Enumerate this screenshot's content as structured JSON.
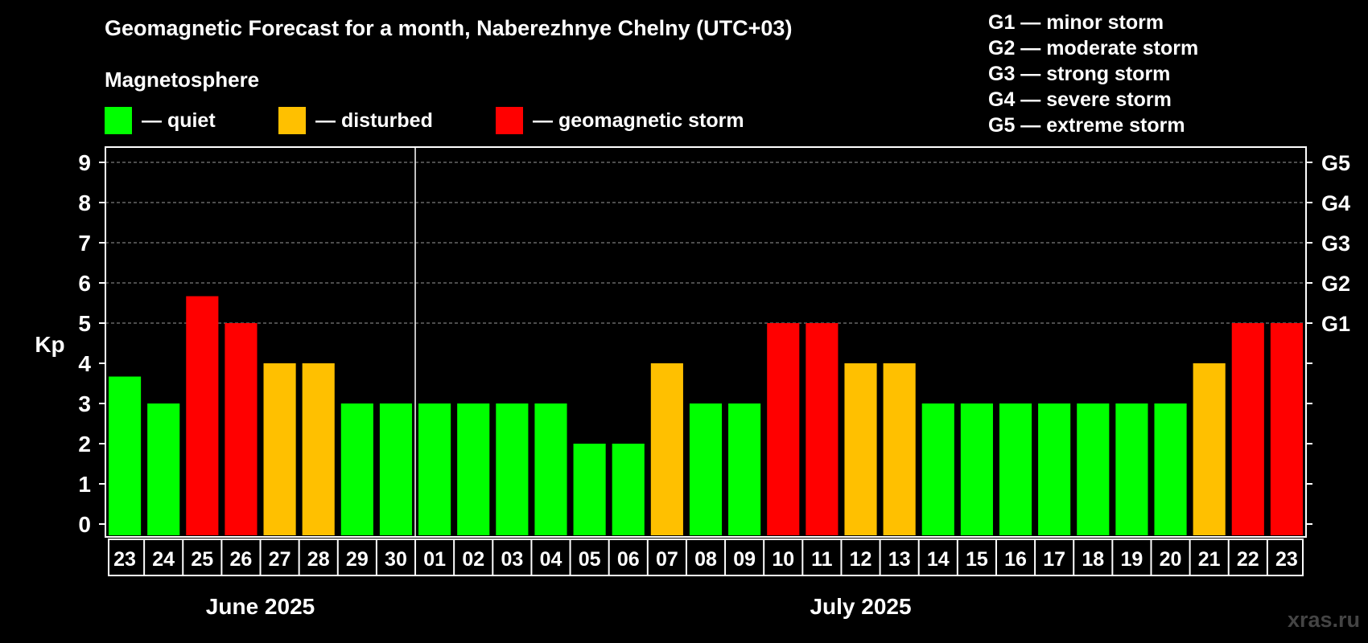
{
  "chart_data": {
    "type": "bar",
    "title": "Geomagnetic Forecast for a month, Naberezhnye Chelny (UTC+03)",
    "ylabel": "Kp",
    "ylim": [
      0,
      9
    ],
    "yticks": [
      "0",
      "1",
      "2",
      "3",
      "4",
      "5",
      "6",
      "7",
      "8",
      "9"
    ],
    "right_axis": [
      {
        "label": "G1",
        "kp": 5
      },
      {
        "label": "G2",
        "kp": 6
      },
      {
        "label": "G3",
        "kp": 7
      },
      {
        "label": "G4",
        "kp": 8
      },
      {
        "label": "G5",
        "kp": 9
      }
    ],
    "grid": true,
    "categories": [
      "23",
      "24",
      "25",
      "26",
      "27",
      "28",
      "29",
      "30",
      "01",
      "02",
      "03",
      "04",
      "05",
      "06",
      "07",
      "08",
      "09",
      "10",
      "11",
      "12",
      "13",
      "14",
      "15",
      "16",
      "17",
      "18",
      "19",
      "20",
      "21",
      "22",
      "23"
    ],
    "values": [
      3.67,
      3,
      5.67,
      5,
      4,
      4,
      3,
      3,
      3,
      3,
      3,
      3,
      2,
      2,
      4,
      3,
      3,
      5,
      5,
      4,
      4,
      3,
      3,
      3,
      3,
      3,
      3,
      3,
      4,
      5,
      5
    ],
    "status": [
      "quiet",
      "quiet",
      "storm",
      "storm",
      "disturbed",
      "disturbed",
      "quiet",
      "quiet",
      "quiet",
      "quiet",
      "quiet",
      "quiet",
      "quiet",
      "quiet",
      "disturbed",
      "quiet",
      "quiet",
      "storm",
      "storm",
      "disturbed",
      "disturbed",
      "quiet",
      "quiet",
      "quiet",
      "quiet",
      "quiet",
      "quiet",
      "quiet",
      "disturbed",
      "storm",
      "storm"
    ],
    "month_groups": [
      {
        "label": "June 2025",
        "start": 0,
        "end": 7
      },
      {
        "label": "July 2025",
        "start": 8,
        "end": 30
      }
    ]
  },
  "legend": {
    "heading": "Magnetosphere",
    "items": [
      {
        "key": "quiet",
        "label": "— quiet",
        "color": "#00ff00"
      },
      {
        "key": "disturbed",
        "label": "— disturbed",
        "color": "#ffc000"
      },
      {
        "key": "storm",
        "label": "— geomagnetic storm",
        "color": "#ff0000"
      }
    ]
  },
  "g_scale": [
    "G1 — minor storm",
    "G2 — moderate storm",
    "G3 — strong storm",
    "G4 — severe storm",
    "G5 — extreme storm"
  ],
  "watermark": "xras.ru"
}
